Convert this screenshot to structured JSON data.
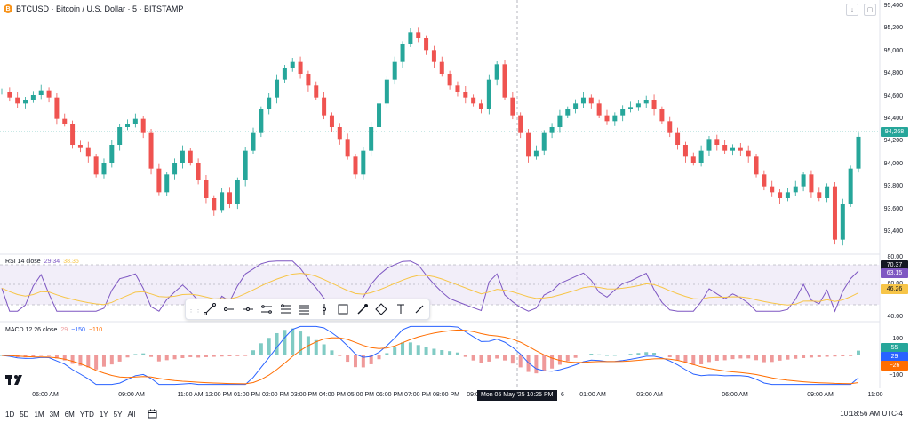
{
  "header": {
    "badge": "B",
    "title": "BTCUSD · Bitcoin / U.S. Dollar · 5 · BITSTAMP"
  },
  "price_axis": {
    "labels": [
      "95,400",
      "95,200",
      "95,000",
      "94,800",
      "94,600",
      "94,400",
      "94,200",
      "94,000",
      "93,800",
      "93,600",
      "93,400"
    ],
    "current_price": "94,268",
    "current_color": "#26a69a"
  },
  "rsi": {
    "name": "RSI 14 close",
    "value1": "29.34",
    "value2": "38.35",
    "color1": "#7e57c2",
    "color2": "#f7c548",
    "axis": [
      "80.00",
      "60.00",
      "40.00"
    ],
    "tag_top": "70.37",
    "tag_rsi": "63.15",
    "tag_ma": "46.26"
  },
  "macd": {
    "name": "MACD 12 26 close",
    "value_hist": "29",
    "value_macd": "−150",
    "value_signal": "−110",
    "axis": [
      "100",
      "0",
      "−100"
    ],
    "tag_hist": "55",
    "tag_macd": "29",
    "tag_signal": "−26",
    "macd_color": "#2962ff",
    "signal_color": "#ff6d00"
  },
  "time_axis": {
    "labels": [
      "06:00 AM",
      "09:00 AM",
      "11:00 AM",
      "12:00 PM",
      "01:00 PM",
      "02:00 PM",
      "03:00 PM",
      "04:00 PM",
      "05:00 PM",
      "06:00 PM",
      "07:00 PM",
      "08:00 PM",
      "09:00",
      "6",
      "01:00 AM",
      "03:00 AM",
      "06:00 AM",
      "09:00 AM",
      "11:00"
    ],
    "crosshair": "Mon 05 May '25    10:25 PM"
  },
  "bottom_bar": {
    "ranges": [
      "1D",
      "5D",
      "1M",
      "3M",
      "6M",
      "YTD",
      "1Y",
      "5Y",
      "All"
    ],
    "clock": "10:18:56 AM UTC-4"
  },
  "chart_data": {
    "type": "candlestick",
    "symbol": "BTCUSD",
    "interval": "5",
    "ylim": [
      93300,
      95400
    ],
    "series_close": [
      94650,
      94600,
      94550,
      94580,
      94620,
      94660,
      94600,
      94420,
      94380,
      94200,
      94180,
      94100,
      93950,
      94050,
      94200,
      94350,
      94380,
      94420,
      94300,
      94000,
      93800,
      93950,
      94050,
      94150,
      94050,
      93900,
      93750,
      93650,
      93800,
      93700,
      93900,
      94150,
      94300,
      94500,
      94600,
      94750,
      94850,
      94900,
      94800,
      94700,
      94600,
      94450,
      94350,
      94250,
      94100,
      93950,
      94150,
      94350,
      94550,
      94750,
      94900,
      95050,
      95150,
      95100,
      95000,
      94900,
      94800,
      94700,
      94650,
      94600,
      94550,
      94500,
      94750,
      94880,
      94600,
      94450,
      94300,
      94100,
      94150,
      94300,
      94350,
      94450,
      94500,
      94550,
      94600,
      94550,
      94450,
      94400,
      94450,
      94500,
      94520,
      94550,
      94580,
      94500,
      94400,
      94300,
      94200,
      94100,
      94050,
      94150,
      94250,
      94200,
      94150,
      94180,
      94150,
      94100,
      93950,
      93850,
      93800,
      93750,
      93800,
      93850,
      93950,
      93800,
      93750,
      93850,
      93400,
      93700,
      94000,
      94268
    ],
    "rsi_ylim": [
      20,
      85
    ],
    "macd_ylim": [
      -120,
      120
    ]
  }
}
